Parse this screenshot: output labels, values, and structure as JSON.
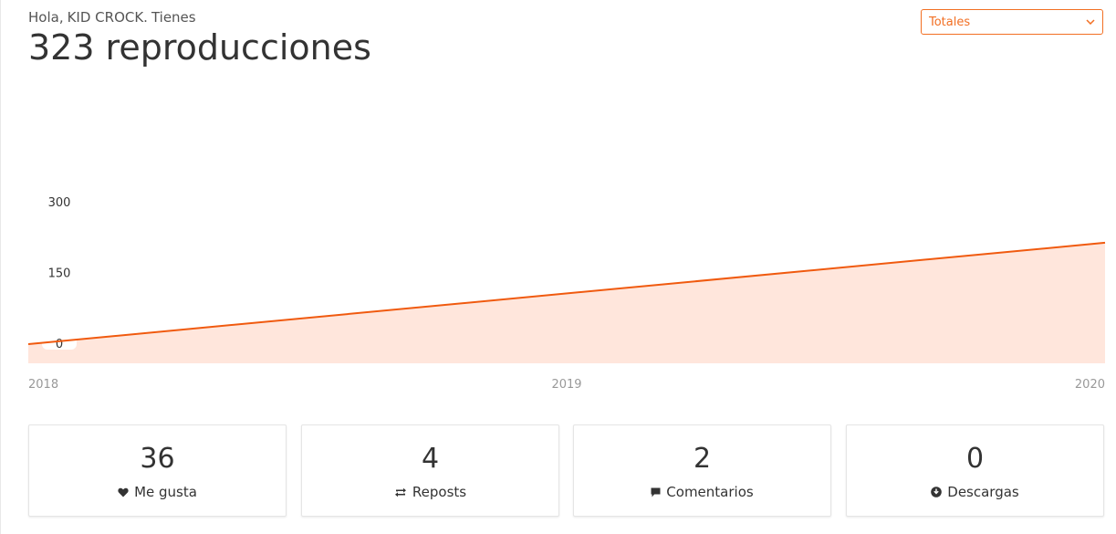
{
  "header": {
    "greeting_prefix": "Hola,",
    "user_name": "KID CROCK.",
    "greeting_suffix": "Tienes",
    "plays_count": "323",
    "plays_label": "reproducciones"
  },
  "period_select": {
    "selected": "Totales",
    "icon": "chevron-down-icon"
  },
  "chart_data": {
    "type": "area",
    "x": [
      "2018",
      "2020"
    ],
    "values": [
      0,
      215
    ],
    "xticks": [
      "2018",
      "2019",
      "2020"
    ],
    "yticks": [
      "0",
      "150",
      "300"
    ],
    "ylim": [
      0,
      300
    ],
    "colors": {
      "line": "#f05a0f",
      "fill": "#ffe6dc"
    }
  },
  "stats": [
    {
      "value": "36",
      "label": "Me gusta",
      "icon": "heart-icon"
    },
    {
      "value": "4",
      "label": "Reposts",
      "icon": "repost-icon"
    },
    {
      "value": "2",
      "label": "Comentarios",
      "icon": "comment-icon"
    },
    {
      "value": "0",
      "label": "Descargas",
      "icon": "download-icon"
    }
  ]
}
